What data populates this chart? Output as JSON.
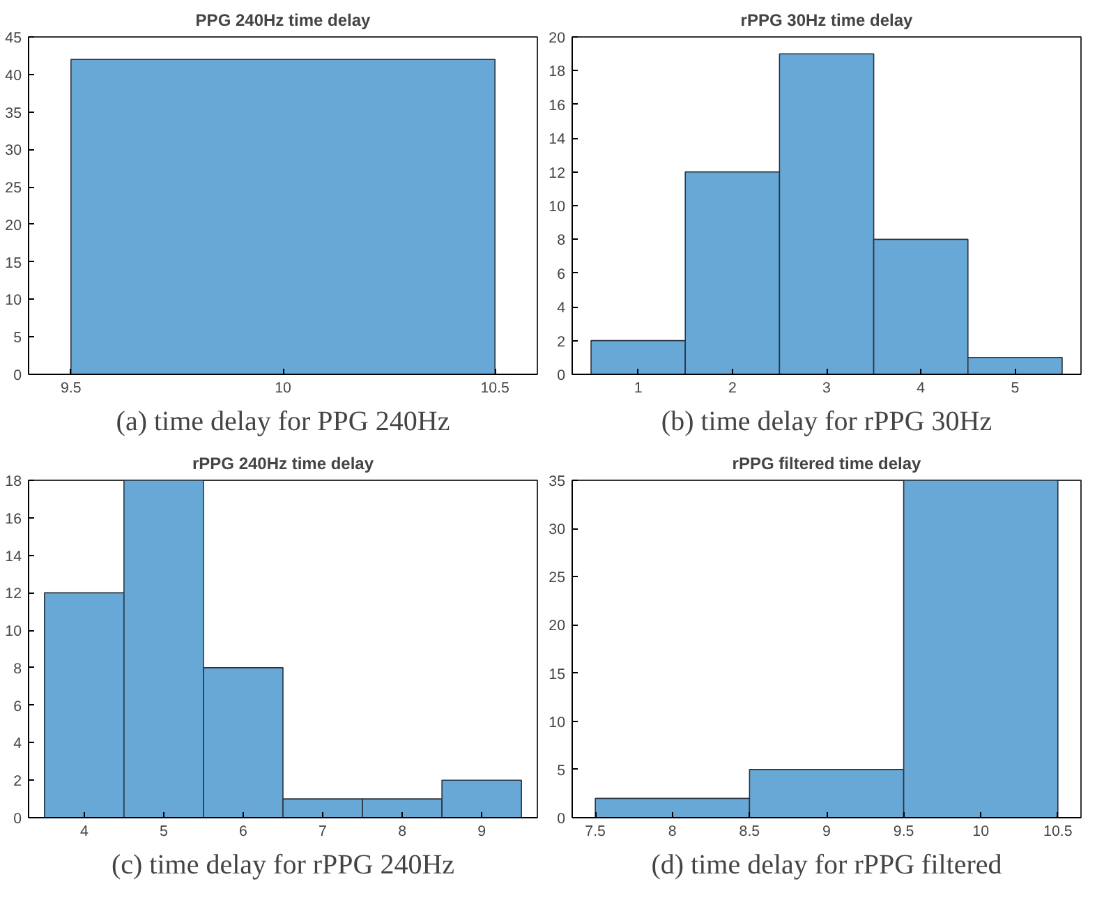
{
  "chart_data": [
    {
      "type": "histogram",
      "title": "PPG 240Hz time delay",
      "bins": [
        9.5,
        10.5
      ],
      "values": [
        42
      ],
      "color": "#68a8d6",
      "xlim": [
        9.4,
        10.6
      ],
      "xticks": [
        9.5,
        10,
        10.5
      ],
      "ylim": [
        0,
        45
      ],
      "yticks": [
        0,
        5,
        10,
        15,
        20,
        25,
        30,
        35,
        40,
        45
      ],
      "grid": false,
      "annotations": [
        "(a) time delay for PPG 240Hz"
      ]
    },
    {
      "type": "histogram",
      "title": "rPPG 30Hz time delay",
      "bins": [
        0.5,
        1.5,
        2.5,
        3.5,
        4.5,
        5.5
      ],
      "values": [
        2,
        12,
        19,
        8,
        1
      ],
      "color": "#68a8d6",
      "xlim": [
        0.3,
        5.7
      ],
      "xticks": [
        1,
        2,
        3,
        4,
        5
      ],
      "ylim": [
        0,
        20
      ],
      "yticks": [
        0,
        2,
        4,
        6,
        8,
        10,
        12,
        14,
        16,
        18,
        20
      ],
      "grid": false,
      "annotations": [
        "(b) time delay for rPPG 30Hz"
      ]
    },
    {
      "type": "histogram",
      "title": "rPPG 240Hz time delay",
      "bins": [
        3.5,
        4.5,
        5.5,
        6.5,
        7.5,
        8.5,
        9.5
      ],
      "values": [
        12,
        18,
        8,
        1,
        1,
        2
      ],
      "color": "#68a8d6",
      "xlim": [
        3.3,
        9.7
      ],
      "xticks": [
        4,
        5,
        6,
        7,
        8,
        9
      ],
      "ylim": [
        0,
        18
      ],
      "yticks": [
        0,
        2,
        4,
        6,
        8,
        10,
        12,
        14,
        16,
        18
      ],
      "grid": false,
      "annotations": [
        "(c) time delay for rPPG 240Hz"
      ]
    },
    {
      "type": "histogram",
      "title": "rPPG filtered time delay",
      "bins": [
        7.5,
        8.5,
        9.5,
        10.5
      ],
      "values": [
        2,
        5,
        35
      ],
      "color": "#68a8d6",
      "xlim": [
        7.35,
        10.65
      ],
      "xticks": [
        7.5,
        8,
        8.5,
        9,
        9.5,
        10,
        10.5
      ],
      "ylim": [
        0,
        35
      ],
      "yticks": [
        0,
        5,
        10,
        15,
        20,
        25,
        30,
        35
      ],
      "grid": false,
      "annotations": [
        "(d) time delay for rPPG filtered"
      ]
    }
  ]
}
